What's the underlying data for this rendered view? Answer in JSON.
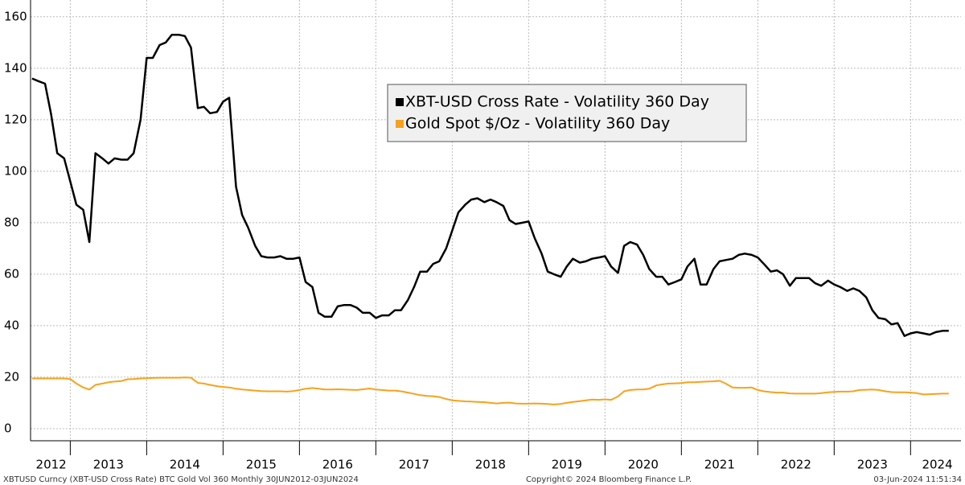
{
  "chart_data": {
    "type": "line",
    "footer_left": "XBTUSD Curncy (XBT-USD Cross Rate) BTC Gold Vol 360  Monthly 30JUN2012-03JUN2024",
    "footer_center": "Copyright© 2024 Bloomberg Finance L.P.",
    "footer_right": "03-Jun-2024 11:51:34",
    "x": [
      2012.5,
      2012.58,
      2012.67,
      2012.75,
      2012.83,
      2012.92,
      2013,
      2013.08,
      2013.17,
      2013.25,
      2013.33,
      2013.42,
      2013.5,
      2013.58,
      2013.67,
      2013.75,
      2013.83,
      2013.92,
      2014,
      2014.08,
      2014.17,
      2014.25,
      2014.33,
      2014.42,
      2014.5,
      2014.58,
      2014.67,
      2014.75,
      2014.83,
      2014.92,
      2015,
      2015.08,
      2015.17,
      2015.25,
      2015.33,
      2015.42,
      2015.5,
      2015.58,
      2015.67,
      2015.75,
      2015.83,
      2015.92,
      2016,
      2016.08,
      2016.17,
      2016.25,
      2016.33,
      2016.42,
      2016.5,
      2016.58,
      2016.67,
      2016.75,
      2016.83,
      2016.92,
      2017,
      2017.08,
      2017.17,
      2017.25,
      2017.33,
      2017.42,
      2017.5,
      2017.58,
      2017.67,
      2017.75,
      2017.83,
      2017.92,
      2018,
      2018.08,
      2018.17,
      2018.25,
      2018.33,
      2018.42,
      2018.5,
      2018.58,
      2018.67,
      2018.75,
      2018.83,
      2018.92,
      2019,
      2019.08,
      2019.17,
      2019.25,
      2019.33,
      2019.42,
      2019.5,
      2019.58,
      2019.67,
      2019.75,
      2019.83,
      2019.92,
      2020,
      2020.08,
      2020.17,
      2020.25,
      2020.33,
      2020.42,
      2020.5,
      2020.58,
      2020.67,
      2020.75,
      2020.83,
      2020.92,
      2021,
      2021.08,
      2021.17,
      2021.25,
      2021.33,
      2021.42,
      2021.5,
      2021.58,
      2021.67,
      2021.75,
      2021.83,
      2021.92,
      2022,
      2022.08,
      2022.17,
      2022.25,
      2022.33,
      2022.42,
      2022.5,
      2022.58,
      2022.67,
      2022.75,
      2022.83,
      2022.92,
      2023,
      2023.08,
      2023.17,
      2023.25,
      2023.33,
      2023.42,
      2023.5,
      2023.58,
      2023.67,
      2023.75,
      2023.83,
      2023.92,
      2024,
      2024.08,
      2024.17,
      2024.25,
      2024.33,
      2024.42,
      2024.5
    ],
    "series": [
      {
        "name": "XBT-USD Cross Rate - Volatility 360 Day",
        "color": "#000000",
        "values": [
          136,
          135,
          134,
          122,
          107,
          105,
          96,
          87,
          85,
          72.5,
          107,
          105,
          103,
          105,
          104.5,
          104.5,
          107,
          120,
          144,
          144,
          149,
          150,
          153,
          153,
          152.5,
          148,
          124.5,
          125,
          122.5,
          123,
          127,
          128.5,
          94,
          83,
          78,
          71,
          67,
          66.5,
          66.5,
          67,
          66,
          66,
          66.5,
          57,
          55,
          45,
          43.5,
          43.5,
          47.5,
          48,
          48,
          47,
          45,
          45,
          43,
          44,
          44,
          46,
          46,
          50,
          55,
          61,
          61,
          64,
          65,
          70,
          77,
          84,
          87,
          89,
          89.5,
          88,
          89,
          88,
          86.5,
          81,
          79.5,
          80,
          80.5,
          74,
          68,
          61,
          60,
          59,
          63,
          66,
          64.5,
          65,
          66,
          66.5,
          67,
          63,
          60.5,
          71,
          72.5,
          71.5,
          67.5,
          62,
          59,
          59,
          56,
          57,
          58,
          63,
          66,
          56,
          56,
          62,
          65,
          65.5,
          66,
          67.5,
          68,
          67.5,
          66.5,
          64,
          61,
          61.5,
          60,
          55.5,
          58.5,
          58.5,
          58.5,
          56.5,
          55.5,
          57.5,
          56,
          55,
          53.5,
          54.5,
          53.5,
          51,
          46,
          43,
          42.5,
          40.5,
          41,
          36,
          37,
          37.5,
          37,
          36.5,
          37.5,
          38,
          38
        ]
      },
      {
        "name": "Gold Spot $/Oz - Volatility 360 Day",
        "color": "#f7a21b",
        "values": [
          19.5,
          19.5,
          19.5,
          19.5,
          19.5,
          19.5,
          19.3,
          17.5,
          16,
          15.2,
          17,
          17.5,
          18,
          18.3,
          18.5,
          19.2,
          19.3,
          19.5,
          19.6,
          19.7,
          19.8,
          19.8,
          19.8,
          19.8,
          19.9,
          19.8,
          17.8,
          17.5,
          17,
          16.5,
          16.2,
          16,
          15.5,
          15.2,
          15,
          14.8,
          14.6,
          14.5,
          14.5,
          14.5,
          14.4,
          14.6,
          15,
          15.5,
          15.8,
          15.5,
          15.2,
          15.2,
          15.3,
          15.2,
          15.1,
          15,
          15.3,
          15.6,
          15.2,
          15,
          14.8,
          14.8,
          14.5,
          14,
          13.5,
          13,
          12.7,
          12.6,
          12.3,
          11.5,
          11,
          10.8,
          10.6,
          10.5,
          10.4,
          10.3,
          10,
          9.8,
          10,
          10.1,
          9.8,
          9.7,
          9.7,
          9.8,
          9.7,
          9.6,
          9.4,
          9.6,
          10,
          10.4,
          10.7,
          11,
          11.3,
          11.2,
          11.4,
          11.2,
          12.5,
          14.5,
          15,
          15.2,
          15.2,
          15.5,
          16.8,
          17.2,
          17.5,
          17.6,
          17.7,
          18,
          18,
          18.2,
          18.3,
          18.4,
          18.6,
          17.5,
          16,
          15.9,
          15.9,
          16,
          15,
          14.5,
          14.2,
          14,
          14,
          13.7,
          13.6,
          13.6,
          13.6,
          13.6,
          13.8,
          14.1,
          14.3,
          14.4,
          14.4,
          14.5,
          15,
          15.1,
          15.2,
          15,
          14.5,
          14.2,
          14.1,
          14.1,
          14,
          13.8,
          13.3,
          13.4,
          13.5,
          13.6,
          13.6
        ]
      }
    ],
    "xlim": [
      2012.48,
      2024.66
    ],
    "xgrid": [
      2013,
      2014,
      2015,
      2016,
      2017,
      2018,
      2019,
      2020,
      2021,
      2022,
      2023,
      2024
    ],
    "xticks": [
      {
        "value": 2012.75,
        "label": "2012"
      },
      {
        "value": 2013.5,
        "label": "2013"
      },
      {
        "value": 2014.5,
        "label": "2014"
      },
      {
        "value": 2015.5,
        "label": "2015"
      },
      {
        "value": 2016.5,
        "label": "2016"
      },
      {
        "value": 2017.5,
        "label": "2017"
      },
      {
        "value": 2018.5,
        "label": "2018"
      },
      {
        "value": 2019.5,
        "label": "2019"
      },
      {
        "value": 2020.5,
        "label": "2020"
      },
      {
        "value": 2021.5,
        "label": "2021"
      },
      {
        "value": 2022.5,
        "label": "2022"
      },
      {
        "value": 2023.5,
        "label": "2023"
      },
      {
        "value": 2024.35,
        "label": "2024"
      }
    ],
    "ylim": [
      -4.7,
      166.5
    ],
    "yticks": [
      0,
      20,
      40,
      60,
      80,
      100,
      120,
      140,
      160
    ],
    "grid": true,
    "legend": "top-center"
  }
}
